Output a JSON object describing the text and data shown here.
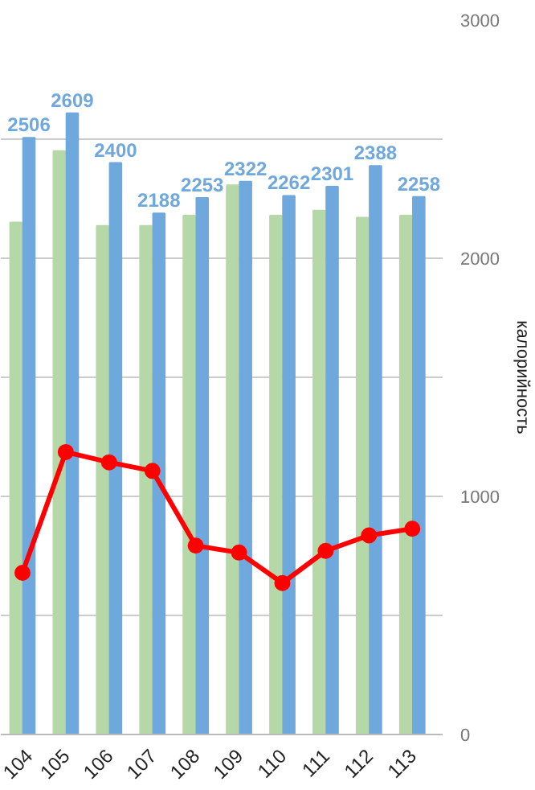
{
  "chart_data": {
    "type": "bar",
    "categories": [
      "104",
      "105",
      "106",
      "107",
      "108",
      "109",
      "110",
      "111",
      "112",
      "113"
    ],
    "series": [
      {
        "color": "#b6d7a8",
        "values": [
          2150,
          2450,
          2136,
          2136,
          2179,
          2307,
          2179,
          2200,
          2171,
          2179
        ]
      },
      {
        "color": "#6fa8dc",
        "values": [
          2506,
          2609,
          2400,
          2188,
          2253,
          2322,
          2262,
          2301,
          2388,
          2258
        ],
        "value_labels": [
          "2506",
          "2609",
          "2400",
          "2188",
          "2253",
          "2322",
          "2262",
          "2301",
          "2388",
          "2258"
        ]
      },
      {
        "type": "line",
        "color": "#ff0000",
        "values": [
          679,
          1186,
          1143,
          1107,
          793,
          764,
          636,
          771,
          836,
          864
        ],
        "marker": "circle"
      }
    ],
    "ylabel": "калорийность",
    "ylim": [
      0,
      3000
    ],
    "yticks": [
      0,
      {
        "value": 500,
        "label": null
      },
      1000,
      {
        "value": 1500,
        "label": null
      },
      2000,
      {
        "value": 2500,
        "label": null
      },
      3000
    ],
    "grid": "y"
  }
}
